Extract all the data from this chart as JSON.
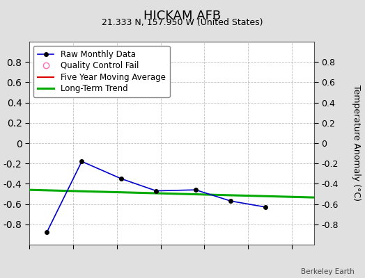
{
  "title": "HICKAM AFB",
  "subtitle": "21.333 N, 157.950 W (United States)",
  "ylabel_right": "Temperature Anomaly (°C)",
  "watermark": "Berkeley Earth",
  "xlim": [
    1949.0,
    1949.65
  ],
  "ylim": [
    -1.0,
    1.0
  ],
  "yticks": [
    -0.8,
    -0.6,
    -0.4,
    -0.2,
    0,
    0.2,
    0.4,
    0.6,
    0.8
  ],
  "xticks": [
    1949.0,
    1949.1,
    1949.2,
    1949.3,
    1949.4,
    1949.5,
    1949.6
  ],
  "raw_x": [
    1949.04,
    1949.12,
    1949.21,
    1949.29,
    1949.38,
    1949.46,
    1949.54
  ],
  "raw_y": [
    -0.88,
    -0.18,
    -0.35,
    -0.47,
    -0.46,
    -0.57,
    -0.63
  ],
  "raw_color": "#0000cc",
  "raw_marker": "o",
  "raw_markersize": 4,
  "raw_markercolor": "#000000",
  "trend_x": [
    1949.0,
    1949.65
  ],
  "trend_y": [
    -0.46,
    -0.535
  ],
  "trend_color": "#00aa00",
  "trend_linewidth": 2.2,
  "mavg_color": "#dd0000",
  "mavg_linewidth": 1.5,
  "qc_color": "#ff69b4",
  "background_color": "#e0e0e0",
  "plot_bg_color": "#ffffff",
  "grid_color": "#c0c0c0",
  "title_fontsize": 13,
  "subtitle_fontsize": 9,
  "tick_fontsize": 9,
  "legend_fontsize": 8.5,
  "ytick_labels": [
    "-0.8",
    "-0.6",
    "-0.4",
    "-0.2",
    "0",
    "0.2",
    "0.4",
    "0.6",
    "0.8"
  ]
}
